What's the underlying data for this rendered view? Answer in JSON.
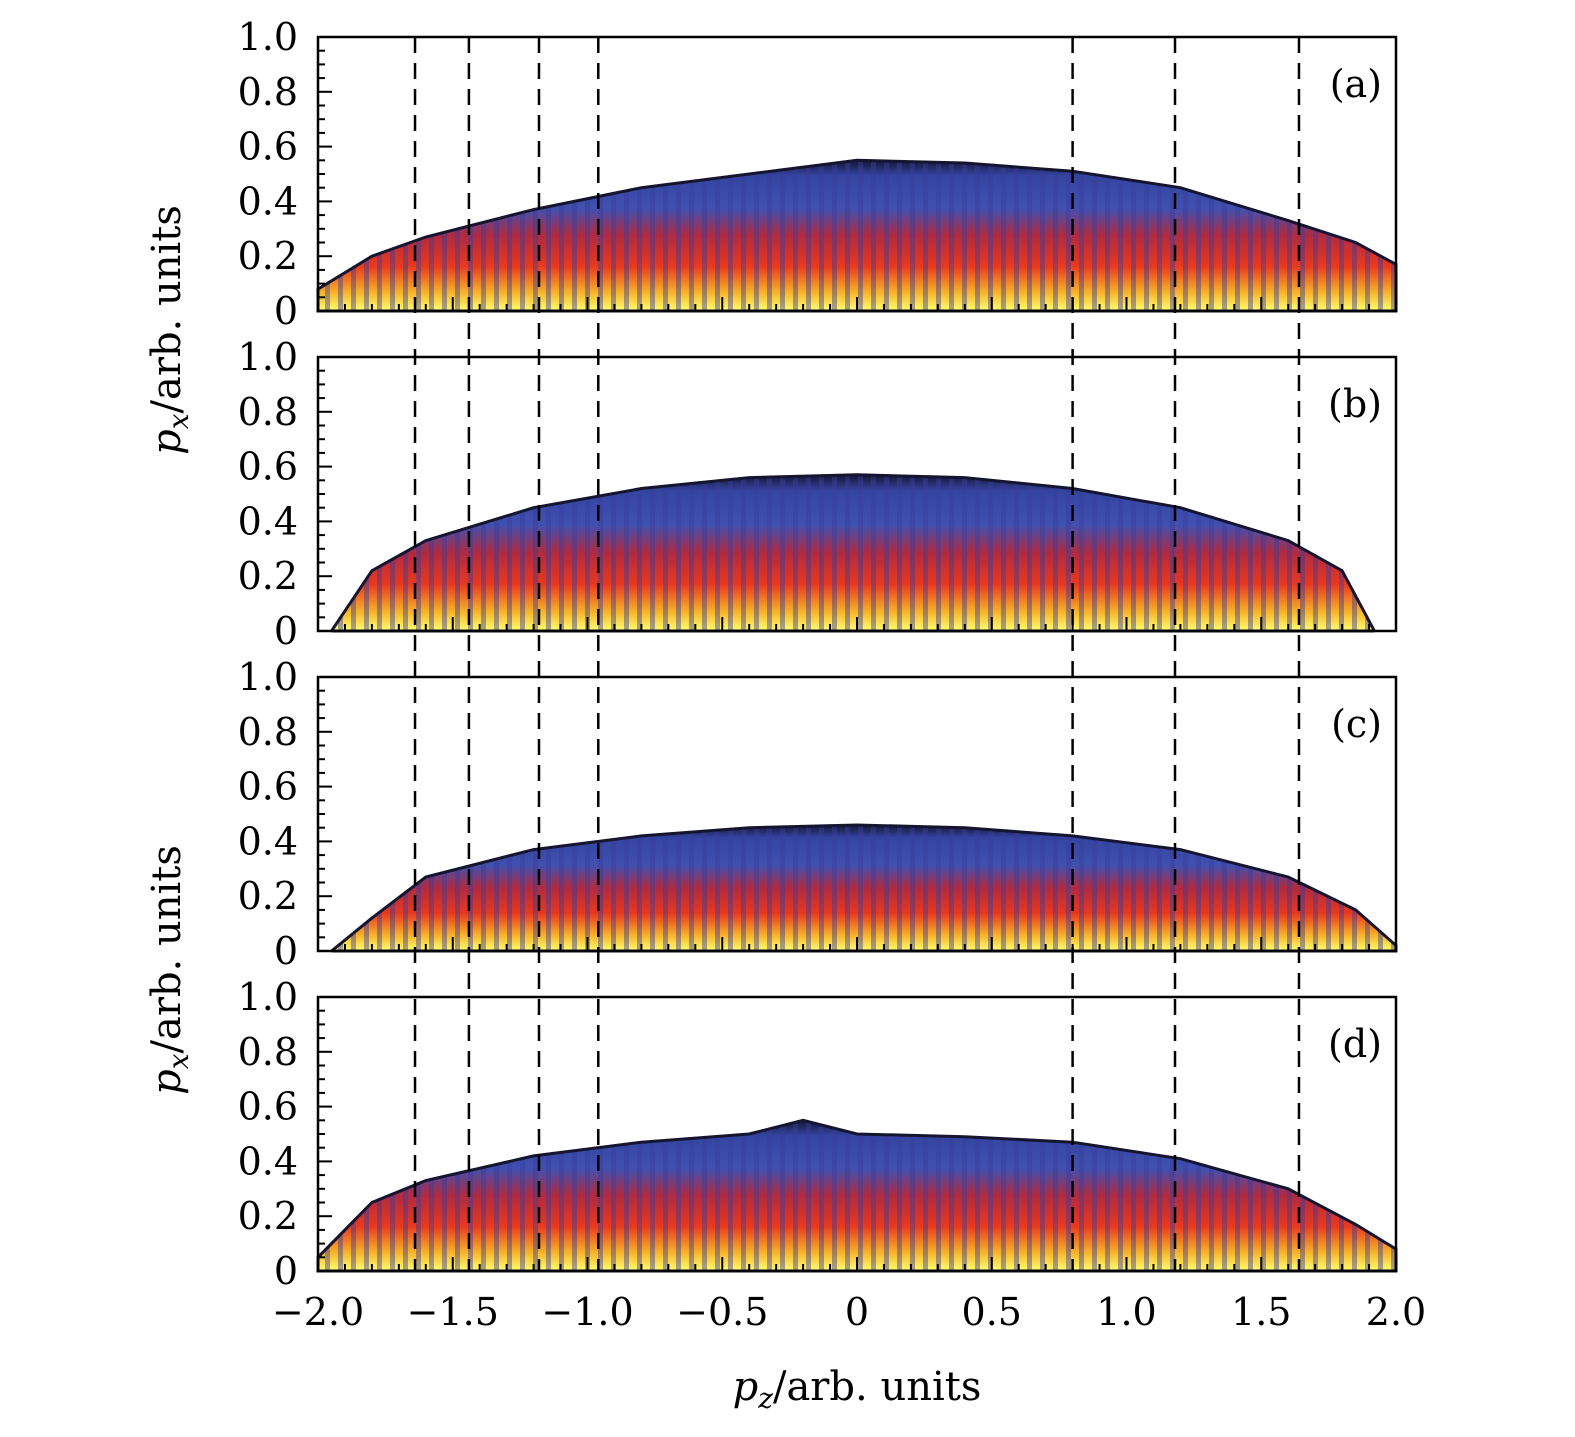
{
  "chart_data": {
    "type": "heatmap",
    "description_panels": [
      "(a)",
      "(b)",
      "(c)",
      "(d)"
    ],
    "xlabel": "p_z/arb. units",
    "xlabel_parts": {
      "var": "p",
      "sub": "z",
      "rest": "/arb. units"
    },
    "ylabel": "p_x/arb. units",
    "ylabel_parts": {
      "var": "p",
      "sub": "x",
      "rest": "/arb. units"
    },
    "xlim": [
      -2.0,
      2.0
    ],
    "ylim": [
      0,
      1.0
    ],
    "x_ticks": [
      -2.0,
      -1.5,
      -1.0,
      -0.5,
      0,
      0.5,
      1.0,
      1.5,
      2.0
    ],
    "x_tick_labels": [
      "−2.0",
      "−1.5",
      "−1.0",
      "−0.5",
      "0",
      "0.5",
      "1.0",
      "1.5",
      "2.0"
    ],
    "y_ticks": [
      0,
      0.2,
      0.4,
      0.6,
      0.8,
      1.0
    ],
    "y_tick_labels": [
      "0",
      "0.2",
      "0.4",
      "0.6",
      "0.8",
      "1.0"
    ],
    "dashed_lines_x": [
      -1.64,
      -1.44,
      -1.18,
      -0.96,
      0.8,
      1.18,
      1.64
    ],
    "colormap": [
      "#ffff66",
      "#f5a623",
      "#e8321e",
      "#b5203a",
      "#3f4fb0",
      "#1a1a3a"
    ],
    "panels": [
      {
        "label": "(a)",
        "envelope": {
          "pz": [
            -2.0,
            -1.8,
            -1.6,
            -1.2,
            -0.8,
            -0.4,
            0,
            0.4,
            0.8,
            1.2,
            1.6,
            1.85,
            2.0
          ],
          "px": [
            0.08,
            0.2,
            0.27,
            0.37,
            0.45,
            0.5,
            0.55,
            0.54,
            0.51,
            0.45,
            0.33,
            0.25,
            0.17
          ]
        }
      },
      {
        "label": "(b)",
        "envelope": {
          "pz": [
            -1.95,
            -1.8,
            -1.6,
            -1.2,
            -0.8,
            -0.4,
            0,
            0.4,
            0.8,
            1.2,
            1.6,
            1.8,
            1.92
          ],
          "px": [
            0.0,
            0.22,
            0.33,
            0.45,
            0.52,
            0.56,
            0.57,
            0.56,
            0.52,
            0.45,
            0.33,
            0.22,
            0.0
          ]
        }
      },
      {
        "label": "(c)",
        "envelope": {
          "pz": [
            -1.95,
            -1.8,
            -1.6,
            -1.2,
            -0.8,
            -0.4,
            0,
            0.4,
            0.8,
            1.2,
            1.6,
            1.85,
            2.0
          ],
          "px": [
            0.0,
            0.12,
            0.27,
            0.37,
            0.42,
            0.45,
            0.46,
            0.45,
            0.42,
            0.37,
            0.27,
            0.15,
            0.02
          ]
        }
      },
      {
        "label": "(d)",
        "envelope": {
          "pz": [
            -2.0,
            -1.8,
            -1.6,
            -1.2,
            -0.8,
            -0.4,
            -0.2,
            0,
            0.4,
            0.8,
            1.2,
            1.6,
            1.85,
            2.0
          ],
          "px": [
            0.05,
            0.25,
            0.33,
            0.42,
            0.47,
            0.5,
            0.55,
            0.5,
            0.49,
            0.47,
            0.41,
            0.3,
            0.17,
            0.08
          ]
        }
      }
    ]
  }
}
